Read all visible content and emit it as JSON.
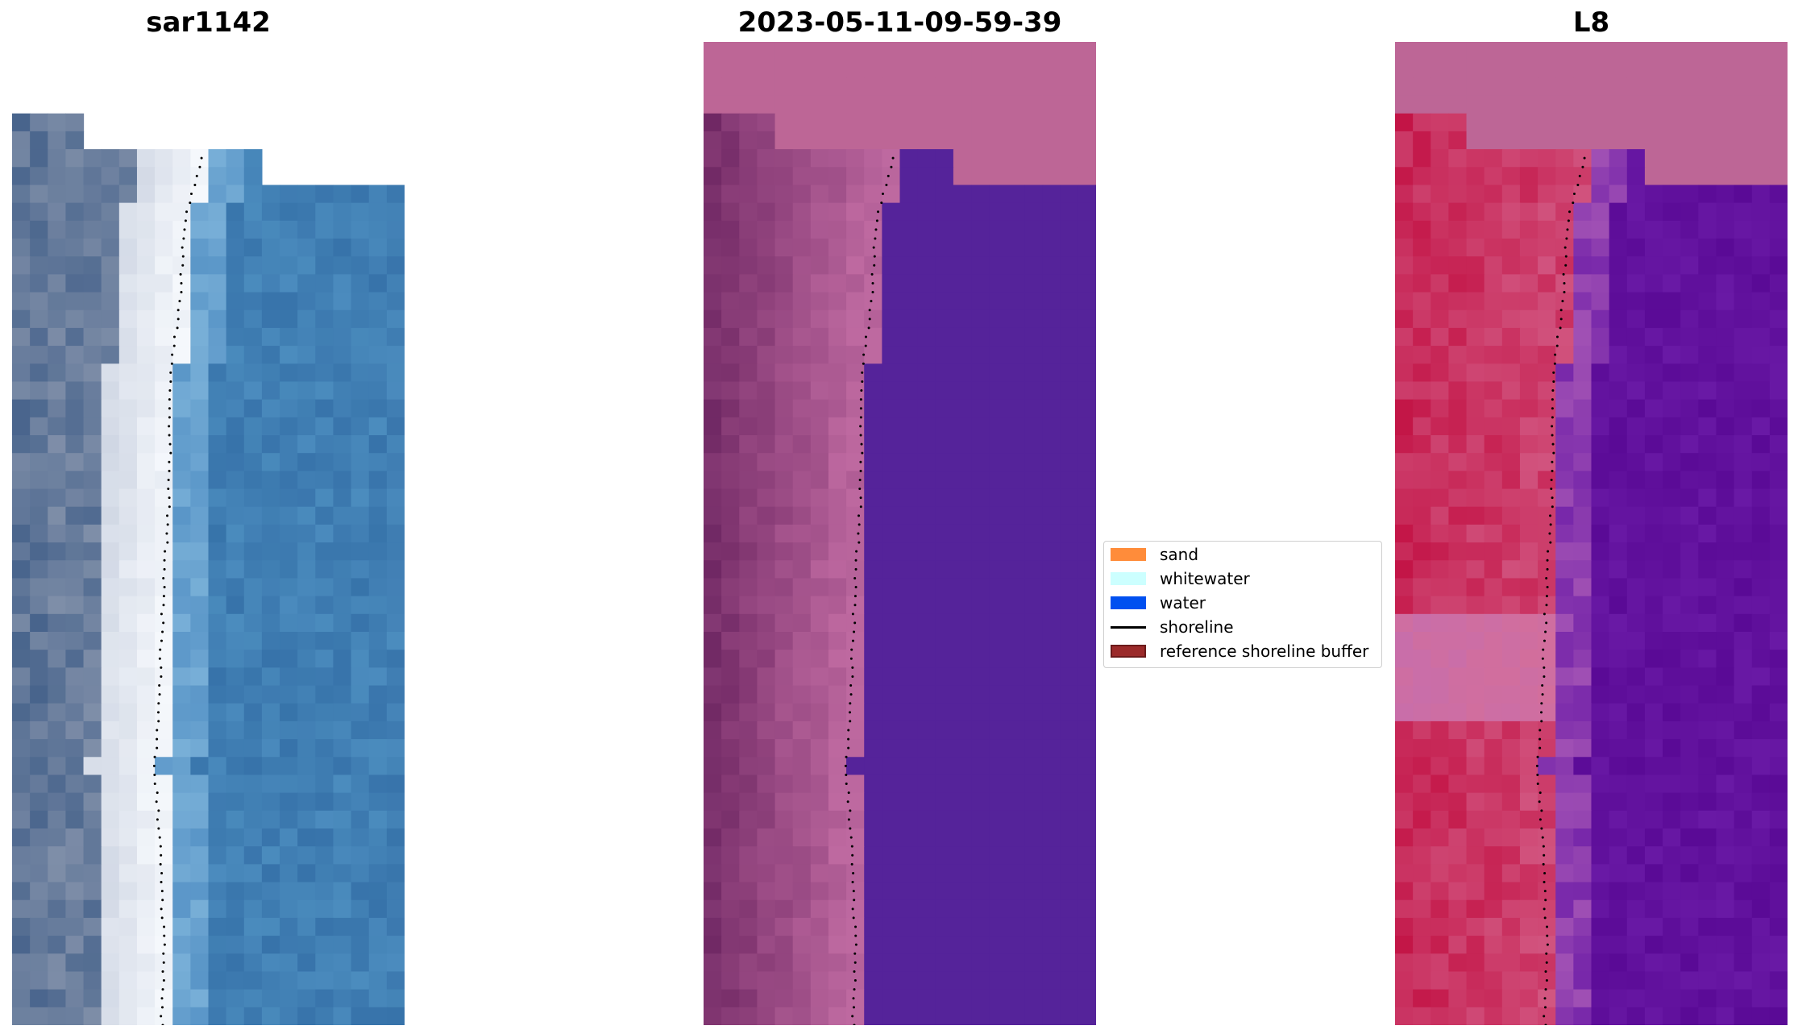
{
  "panels": [
    {
      "title": "sar1142",
      "mode": "rgb"
    },
    {
      "title": "2023-05-11-09-59-39",
      "mode": "classified"
    },
    {
      "title": "L8",
      "mode": "index"
    }
  ],
  "legend": {
    "items": [
      {
        "label": "sand",
        "color": "#ff8c3a",
        "kind": "patch"
      },
      {
        "label": "whitewater",
        "color": "#ccffff",
        "kind": "patch"
      },
      {
        "label": "water",
        "color": "#0050f0",
        "kind": "patch"
      },
      {
        "label": "shoreline",
        "color": "#000000",
        "kind": "line"
      },
      {
        "label": "reference shoreline buffer",
        "color": "#9b2a2a",
        "kind": "patch"
      }
    ]
  },
  "colors": {
    "nodata_overlay": "#bd6696",
    "classified_water": "#55239a",
    "shoreline_dots": "#000000"
  }
}
